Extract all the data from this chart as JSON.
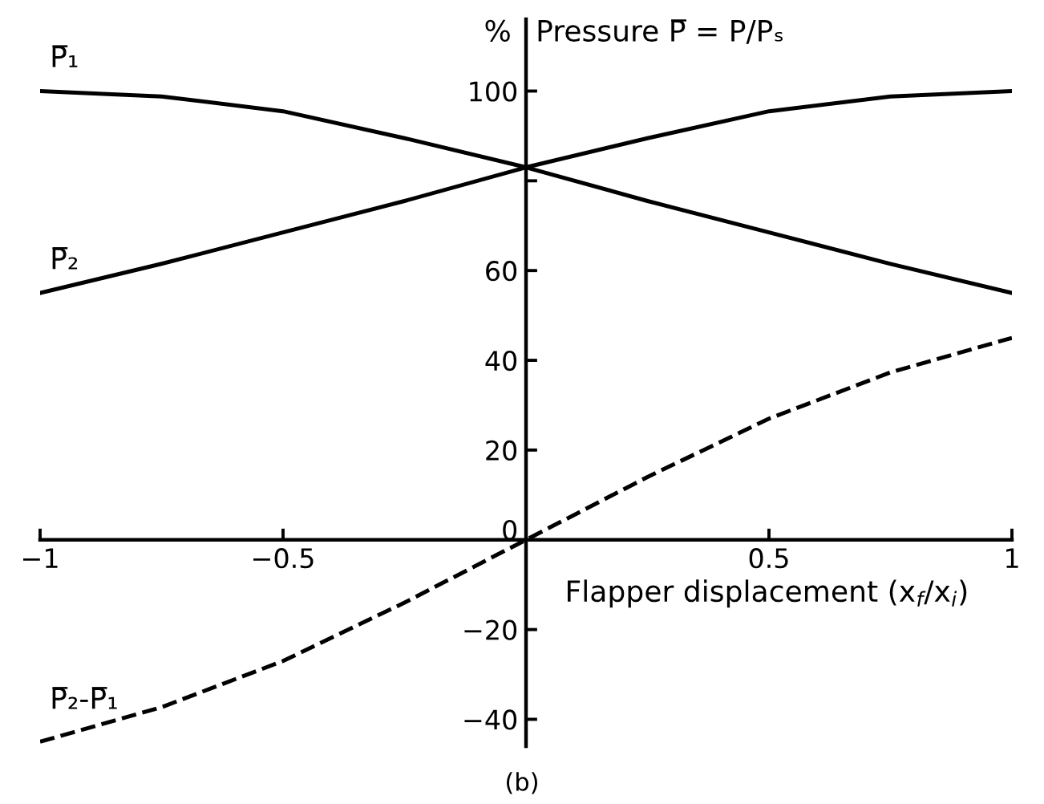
{
  "chart_data": {
    "type": "line",
    "title": "Pressure P̅ = P/Pₛ",
    "ylabel": "%",
    "xlabel": "Flapper displacement (x$_{f}$/x$_{i}$)",
    "annotations": [
      "(b)"
    ],
    "x": [
      -1,
      -0.75,
      -0.5,
      -0.25,
      0,
      0.25,
      0.5,
      0.75,
      1
    ],
    "series": [
      {
        "name": "P̅₁",
        "color": "#000000",
        "values": [
          100,
          98.8,
          95.5,
          89.5,
          83,
          75.5,
          68.5,
          61.5,
          55
        ]
      },
      {
        "name": "P̅₂",
        "color": "#000000",
        "values": [
          55,
          61.5,
          68.5,
          75.5,
          83,
          89.5,
          95.5,
          98.8,
          100
        ]
      },
      {
        "name": "P̅₂-P̅₁",
        "color": "#000000",
        "line_style": "dashed",
        "values": [
          -45,
          -37.3,
          -27,
          -14,
          0,
          14,
          27,
          37.3,
          45
        ]
      }
    ],
    "xlim": [
      -1,
      1
    ],
    "ylim": [
      -46,
      116
    ],
    "xticks": [
      {
        "value": -1,
        "label": "−1"
      },
      {
        "value": -0.5,
        "label": "−0.5"
      },
      0.5,
      1
    ],
    "yticks": [
      {
        "value": -40,
        "label": "−40"
      },
      {
        "value": -20,
        "label": "−20"
      },
      0,
      20,
      40,
      60,
      {
        "value": 80,
        "label": null
      },
      100
    ],
    "grid": false,
    "legend": false,
    "line_style": "solid",
    "marker": "none"
  }
}
